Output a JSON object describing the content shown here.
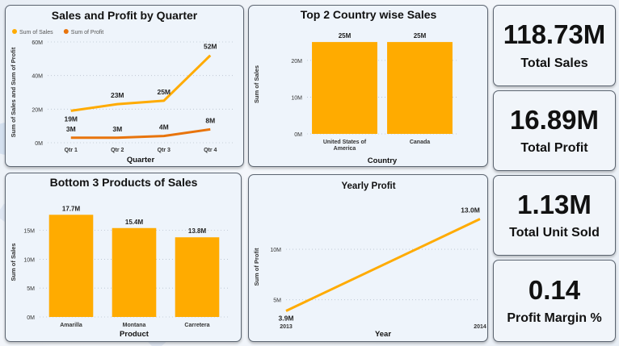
{
  "charts": {
    "quarter": {
      "type": "line",
      "title": "Sales and Profit by Quarter",
      "xlabel": "Quarter",
      "ylabel": "Sum of Sales and Sum of Profit",
      "categories": [
        "Qtr 1",
        "Qtr 2",
        "Qtr 3",
        "Qtr 4"
      ],
      "y_ticks": [
        0,
        20,
        40,
        60
      ],
      "y_tick_labels": [
        "0M",
        "20M",
        "40M",
        "60M"
      ],
      "ylim": [
        0,
        60
      ],
      "series": [
        {
          "name": "Sum of Sales",
          "color": "#FFAB00",
          "values": [
            19,
            23,
            25,
            52
          ],
          "labels": [
            "19M",
            "23M",
            "25M",
            "52M"
          ]
        },
        {
          "name": "Sum of Profit",
          "color": "#E8740C",
          "values": [
            3,
            3,
            4,
            8
          ],
          "labels": [
            "3M",
            "3M",
            "4M",
            "8M"
          ]
        }
      ]
    },
    "country": {
      "type": "bar",
      "title": "Top 2 Country wise Sales",
      "xlabel": "Country",
      "ylabel": "Sum of Sales",
      "categories": [
        "United States of America",
        "Canada"
      ],
      "category_lines": [
        [
          "United States of",
          "America"
        ],
        [
          "Canada"
        ]
      ],
      "values": [
        25,
        25
      ],
      "labels": [
        "25M",
        "25M"
      ],
      "y_ticks": [
        0,
        10,
        20
      ],
      "y_tick_labels": [
        "0M",
        "10M",
        "20M"
      ],
      "ylim": [
        0,
        27
      ],
      "color": "#FFAB00"
    },
    "products": {
      "type": "bar",
      "title": "Bottom 3 Products of Sales",
      "xlabel": "Product",
      "ylabel": "Sum of Sales",
      "categories": [
        "Amarilla",
        "Montana",
        "Carretera"
      ],
      "values": [
        17.7,
        15.4,
        13.8
      ],
      "labels": [
        "17.7M",
        "15.4M",
        "13.8M"
      ],
      "y_ticks": [
        0,
        5,
        10,
        15
      ],
      "y_tick_labels": [
        "0M",
        "5M",
        "10M",
        "15M"
      ],
      "ylim": [
        0,
        19
      ],
      "color": "#FFAB00"
    },
    "yearly": {
      "type": "line",
      "title": "Yearly Profit",
      "xlabel": "Year",
      "ylabel": "Sum of Profit",
      "categories": [
        "2013",
        "2014"
      ],
      "values": [
        3.9,
        13.0
      ],
      "labels": [
        "3.9M",
        "13.0M"
      ],
      "y_ticks": [
        5,
        10
      ],
      "y_tick_labels": [
        "5M",
        "10M"
      ],
      "ylim": [
        2.5,
        14
      ],
      "color": "#FFAB00"
    }
  },
  "kpis": [
    {
      "value": "118.73M",
      "label": "Total Sales"
    },
    {
      "value": "16.89M",
      "label": "Total Profit"
    },
    {
      "value": "1.13M",
      "label": "Total Unit Sold"
    },
    {
      "value": "0.14",
      "label": "Profit Margin %"
    }
  ]
}
